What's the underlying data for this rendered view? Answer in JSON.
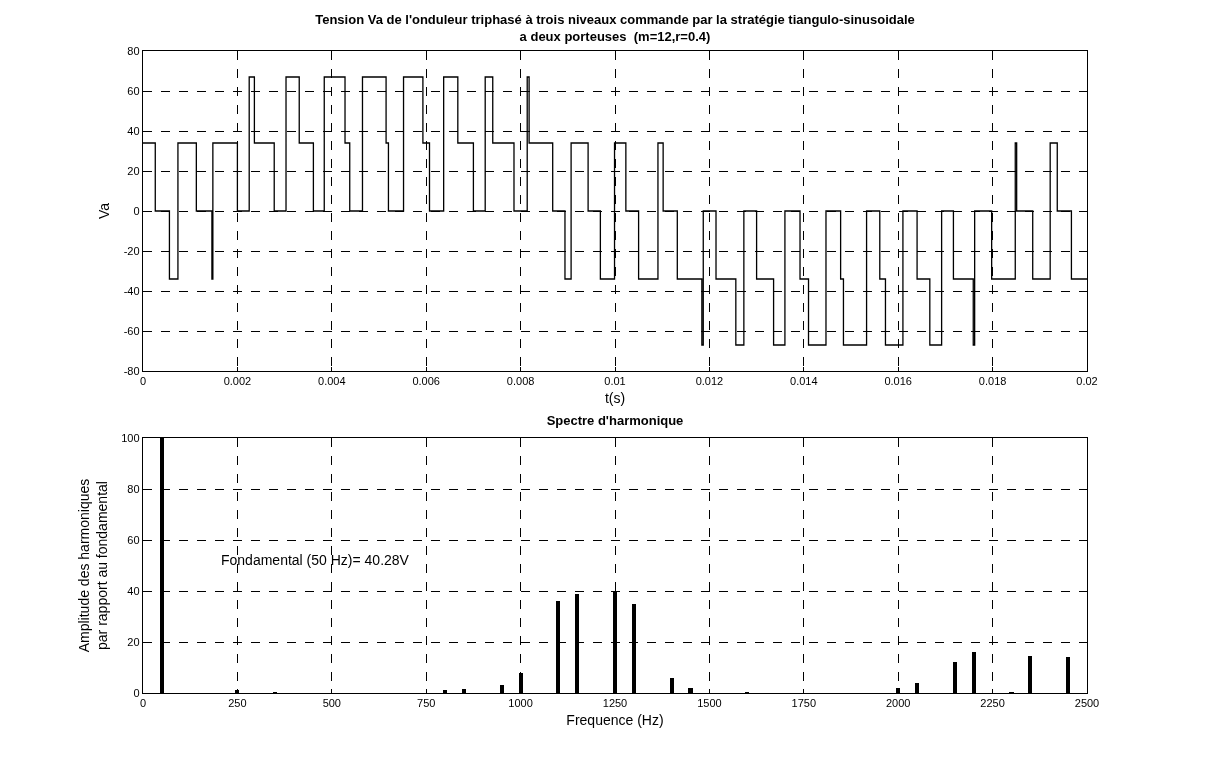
{
  "chart_data": [
    {
      "type": "step",
      "title": "Tension Va de l'onduleur triphasé à trois niveaux commande par la stratégie tiangulo-sinusoidale\na deux porteuses  (m=12,r=0.4)",
      "xlabel": "t(s)",
      "ylabel": "Va",
      "x": [
        0,
        0.00026,
        0.00056,
        0.00074,
        0.00113,
        0.00146,
        0.00148,
        0.002,
        0.00225,
        0.00236,
        0.00278,
        0.00303,
        0.00331,
        0.00361,
        0.00384,
        0.00428,
        0.00438,
        0.00465,
        0.00515,
        0.0052,
        0.00552,
        0.00593,
        0.00607,
        0.00637,
        0.00667,
        0.007,
        0.00725,
        0.00741,
        0.00786,
        0.00814,
        0.00818,
        0.00868,
        0.00894,
        0.00907,
        0.00943,
        0.00969,
        0.00999,
        0.01023,
        0.0105,
        0.01091,
        0.01102,
        0.01132,
        0.01184,
        0.01187,
        0.01214,
        0.01256,
        0.01273,
        0.013,
        0.01336,
        0.0136,
        0.01392,
        0.0141,
        0.01447,
        0.01478,
        0.01484,
        0.01533,
        0.01561,
        0.01573,
        0.0161,
        0.0164,
        0.01667,
        0.01692,
        0.01717,
        0.01759,
        0.01762,
        0.01798,
        0.01848,
        0.01851,
        0.01885,
        0.01922,
        0.01937,
        0.01967,
        0.02
      ],
      "series": [
        {
          "color": "#000000",
          "values": [
            34,
            0,
            -34,
            34,
            0,
            -34,
            34,
            0,
            67,
            34,
            0,
            67,
            34,
            0,
            67,
            34,
            0,
            67,
            34,
            0,
            67,
            34,
            0,
            67,
            34,
            0,
            67,
            34,
            0,
            67,
            34,
            0,
            -34,
            34,
            0,
            -34,
            34,
            0,
            -34,
            34,
            0,
            -34,
            -67,
            0,
            -34,
            -67,
            0,
            -34,
            -67,
            0,
            -34,
            -67,
            0,
            -34,
            -67,
            0,
            -34,
            -67,
            0,
            -34,
            -67,
            0,
            -34,
            -67,
            0,
            -34,
            34,
            0,
            -34,
            34,
            0,
            -34,
            -34
          ]
        }
      ],
      "xlim": [
        0,
        0.02
      ],
      "xticks": [
        0,
        0.002,
        0.004,
        0.006,
        0.008,
        0.01,
        0.012,
        0.014,
        0.016,
        0.018,
        0.02
      ],
      "ylim": [
        -80,
        80
      ],
      "yticks": [
        -80,
        -60,
        -40,
        -20,
        0,
        20,
        40,
        60,
        80
      ],
      "grid": true,
      "marker": "none",
      "line_style": "solid"
    },
    {
      "type": "bar",
      "title": "Spectre d'harmonique",
      "xlabel": "Frequence (Hz)",
      "ylabel": "Amplitude des harmoniques\npar rapport au fondamental",
      "x": [
        50,
        250,
        350,
        800,
        850,
        950,
        1000,
        1100,
        1150,
        1250,
        1300,
        1400,
        1450,
        1600,
        2000,
        2050,
        2150,
        2200,
        2300,
        2350,
        2450
      ],
      "series": [
        {
          "color": "#000000",
          "values": [
            100,
            1,
            0.5,
            1,
            1.5,
            3,
            8,
            36,
            39,
            40,
            35,
            6,
            2,
            0.5,
            2,
            4,
            12,
            16,
            0.5,
            14.5,
            14
          ]
        }
      ],
      "xlim": [
        0,
        2500
      ],
      "xticks": [
        0,
        250,
        500,
        750,
        1000,
        1250,
        1500,
        1750,
        2000,
        2250,
        2500
      ],
      "ylim": [
        0,
        100
      ],
      "yticks": [
        0,
        20,
        40,
        60,
        80,
        100
      ],
      "annotations": [
        "Fondamental (50 Hz)= 40.28V"
      ],
      "grid": true
    }
  ]
}
